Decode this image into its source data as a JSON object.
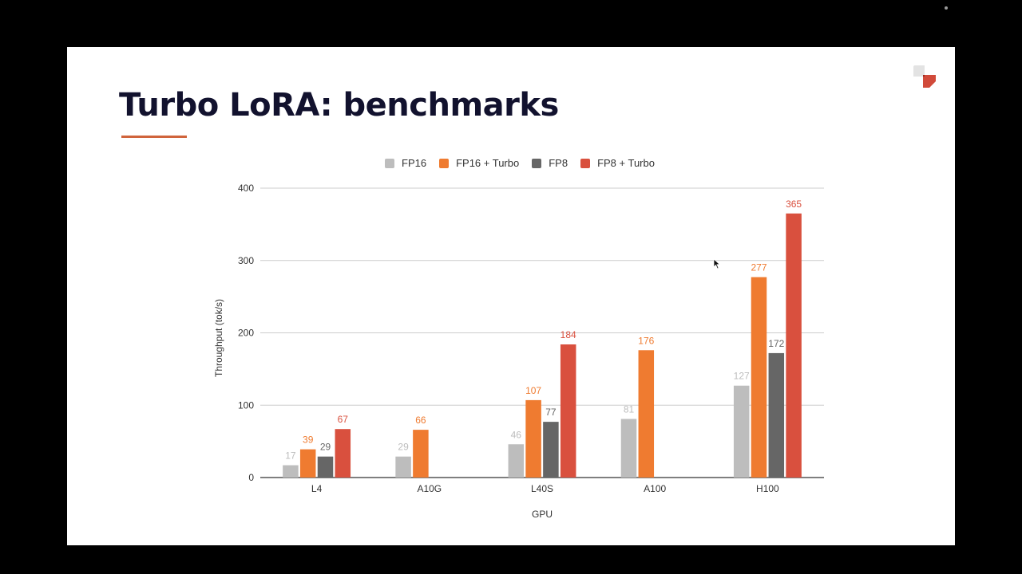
{
  "slide": {
    "title": "Turbo LoRA: benchmarks"
  },
  "colors": {
    "title": "#12122e",
    "accent": "#d0643c",
    "logo_light": "#e3e3e3",
    "logo_red": "#d14a3a"
  },
  "chart_data": {
    "type": "bar",
    "title": "",
    "xlabel": "GPU",
    "ylabel": "Throughput (tok/s)",
    "ylim": [
      0,
      400
    ],
    "yticks": [
      0,
      100,
      200,
      300,
      400
    ],
    "grid": true,
    "legend_position": "top",
    "categories": [
      "L4",
      "A10G",
      "L40S",
      "A100",
      "H100"
    ],
    "series": [
      {
        "name": "FP16",
        "color": "#bdbdbd",
        "label_color": "#bdbdbd",
        "values": [
          17,
          29,
          46,
          81,
          127
        ]
      },
      {
        "name": "FP16 + Turbo",
        "color": "#ef7b30",
        "label_color": "#ef7b30",
        "values": [
          39,
          66,
          107,
          176,
          277
        ]
      },
      {
        "name": "FP8",
        "color": "#666666",
        "label_color": "#666666",
        "values": [
          29,
          null,
          77,
          null,
          172
        ]
      },
      {
        "name": "FP8 + Turbo",
        "color": "#d9503e",
        "label_color": "#d9503e",
        "values": [
          67,
          null,
          184,
          null,
          365
        ]
      }
    ]
  }
}
